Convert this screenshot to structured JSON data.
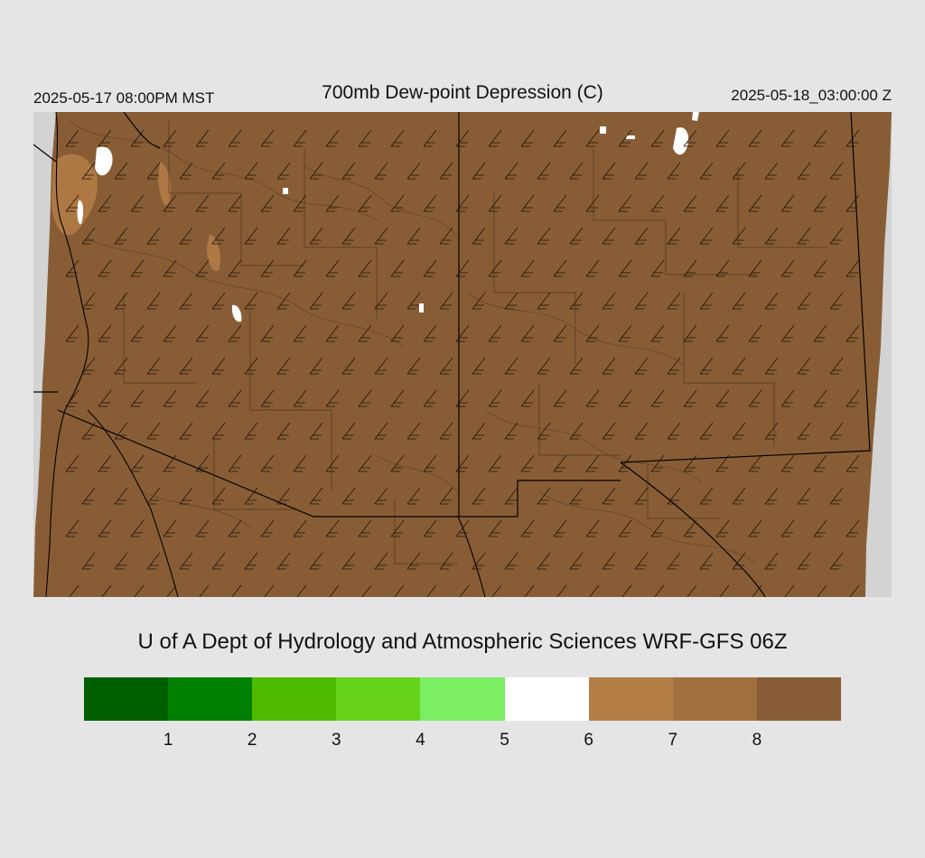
{
  "header": {
    "local_time": "2025-05-17 08:00PM MST",
    "title": "700mb Dew-point Depression (C)",
    "utc_time": "2025-05-18_03:00:00 Z"
  },
  "credit": "U of A Dept of Hydrology and Atmospheric Sciences WRF-GFS 06Z",
  "legend": {
    "colors": [
      "#006000",
      "#008000",
      "#4fbb00",
      "#66d31a",
      "#7bee64",
      "#ffffff",
      "#b57d46",
      "#a1703f",
      "#885d35"
    ],
    "tick_labels": [
      "1",
      "2",
      "3",
      "4",
      "5",
      "6",
      "7",
      "8"
    ]
  },
  "map": {
    "field_color": "#885d35",
    "light_color": "#a1703f",
    "lighter_color": "#b57d46",
    "no_data_color": "#d3d3d3",
    "background_color": "#e5e5e5"
  }
}
